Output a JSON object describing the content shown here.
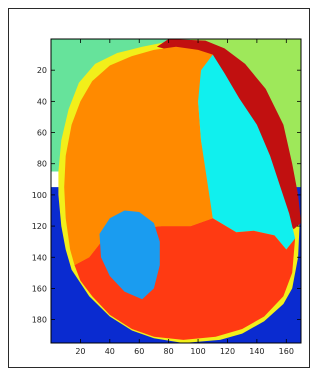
{
  "chart_data": {
    "type": "heatmap",
    "title": "",
    "xlabel": "",
    "ylabel": "",
    "xlim": [
      0,
      170
    ],
    "ylim": [
      0,
      195
    ],
    "y_axis_reversed": true,
    "grid": false,
    "legend": "none",
    "xticks": [
      20,
      40,
      60,
      80,
      100,
      120,
      140,
      160
    ],
    "yticks": [
      20,
      40,
      60,
      80,
      100,
      120,
      140,
      160,
      180
    ],
    "colormap": "jet",
    "regions": [
      {
        "label": "background-top-left",
        "color": "#66e39b"
      },
      {
        "label": "background-top-right",
        "color": "#9ee85a"
      },
      {
        "label": "background-bottom",
        "color": "#0a2bd0"
      },
      {
        "label": "rim-yellow",
        "color": "#f2ef1a"
      },
      {
        "label": "rim-dark-red",
        "color": "#c11010"
      },
      {
        "label": "region-orange",
        "color": "#ff8a00"
      },
      {
        "label": "region-cyan",
        "color": "#10f0ee"
      },
      {
        "label": "region-light-blue",
        "color": "#1a9cf0"
      },
      {
        "label": "region-red",
        "color": "#ff3a12"
      }
    ]
  }
}
